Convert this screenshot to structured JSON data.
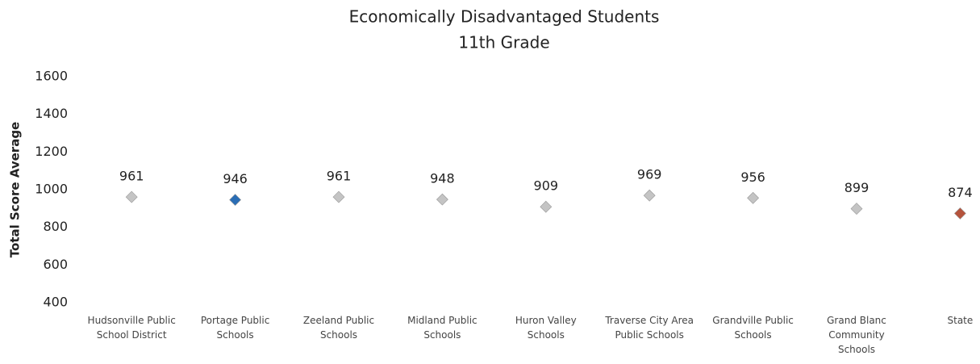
{
  "chart_data": {
    "type": "dot",
    "title": "Economically Disadvantaged Students",
    "subtitle": "11th Grade",
    "ylabel": "Total Score Average",
    "categories": [
      "Hudsonville Public School District",
      "Portage Public Schools",
      "Zeeland Public Schools",
      "Midland Public Schools",
      "Huron Valley Schools",
      "Traverse City Area Public Schools",
      "Grandville Public Schools",
      "Grand Blanc Community Schools",
      "State"
    ],
    "series": [
      {
        "values": [
          961,
          946,
          961,
          948,
          909,
          969,
          956,
          899,
          874
        ],
        "colors": [
          "#c4c4c4",
          "#2a6db5",
          "#c4c4c4",
          "#c4c4c4",
          "#c4c4c4",
          "#c4c4c4",
          "#c4c4c4",
          "#c4c4c4",
          "#b5533c"
        ]
      }
    ],
    "ylim": [
      400,
      1600
    ],
    "yticks": [
      400,
      600,
      800,
      1000,
      1200,
      1400,
      1600
    ],
    "grid": false
  }
}
